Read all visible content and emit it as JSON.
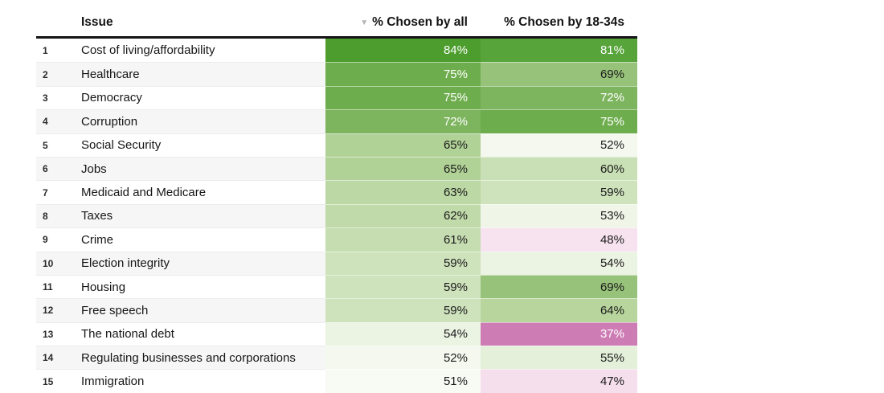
{
  "table": {
    "header": {
      "issue_label": "Issue",
      "col_all_label": "% Chosen by all",
      "col_young_label": "% Chosen by 18-34s",
      "sort_icon": "▼"
    },
    "rows": [
      {
        "rank": "1",
        "issue": "Cost of living/affordability",
        "all": {
          "text": "84%",
          "bg": "#4c9d2d",
          "fg": "#ffffff"
        },
        "young": {
          "text": "81%",
          "bg": "#57a43a",
          "fg": "#ffffff"
        }
      },
      {
        "rank": "2",
        "issue": "Healthcare",
        "all": {
          "text": "75%",
          "bg": "#6ead4d",
          "fg": "#ffffff"
        },
        "young": {
          "text": "69%",
          "bg": "#97c27a",
          "fg": "#1c1c1c"
        }
      },
      {
        "rank": "3",
        "issue": "Democracy",
        "all": {
          "text": "75%",
          "bg": "#6ead4d",
          "fg": "#ffffff"
        },
        "young": {
          "text": "72%",
          "bg": "#7db45e",
          "fg": "#ffffff"
        }
      },
      {
        "rank": "4",
        "issue": "Corruption",
        "all": {
          "text": "72%",
          "bg": "#7db45e",
          "fg": "#ffffff"
        },
        "young": {
          "text": "75%",
          "bg": "#6ead4d",
          "fg": "#ffffff"
        }
      },
      {
        "rank": "5",
        "issue": "Social Security",
        "all": {
          "text": "65%",
          "bg": "#b1d296",
          "fg": "#1c1c1c"
        },
        "young": {
          "text": "52%",
          "bg": "#f4f8ef",
          "fg": "#1c1c1c"
        }
      },
      {
        "rank": "6",
        "issue": "Jobs",
        "all": {
          "text": "65%",
          "bg": "#b1d296",
          "fg": "#1c1c1c"
        },
        "young": {
          "text": "60%",
          "bg": "#c9dfb5",
          "fg": "#1c1c1c"
        }
      },
      {
        "rank": "7",
        "issue": "Medicaid and Medicare",
        "all": {
          "text": "63%",
          "bg": "#bcd8a4",
          "fg": "#1c1c1c"
        },
        "young": {
          "text": "59%",
          "bg": "#cee2bc",
          "fg": "#1c1c1c"
        }
      },
      {
        "rank": "8",
        "issue": "Taxes",
        "all": {
          "text": "62%",
          "bg": "#c0daa9",
          "fg": "#1c1c1c"
        },
        "young": {
          "text": "53%",
          "bg": "#eff6e8",
          "fg": "#1c1c1c"
        }
      },
      {
        "rank": "9",
        "issue": "Crime",
        "all": {
          "text": "61%",
          "bg": "#c5ddb0",
          "fg": "#1c1c1c"
        },
        "young": {
          "text": "48%",
          "bg": "#f7e3f0",
          "fg": "#1c1c1c"
        }
      },
      {
        "rank": "10",
        "issue": "Election integrity",
        "all": {
          "text": "59%",
          "bg": "#cee2bc",
          "fg": "#1c1c1c"
        },
        "young": {
          "text": "54%",
          "bg": "#ebf3e2",
          "fg": "#1c1c1c"
        }
      },
      {
        "rank": "11",
        "issue": "Housing",
        "all": {
          "text": "59%",
          "bg": "#cee2bc",
          "fg": "#1c1c1c"
        },
        "young": {
          "text": "69%",
          "bg": "#97c27a",
          "fg": "#1c1c1c"
        }
      },
      {
        "rank": "12",
        "issue": "Free speech",
        "all": {
          "text": "59%",
          "bg": "#cee2bc",
          "fg": "#1c1c1c"
        },
        "young": {
          "text": "64%",
          "bg": "#b7d59d",
          "fg": "#1c1c1c"
        }
      },
      {
        "rank": "13",
        "issue": "The national debt",
        "all": {
          "text": "54%",
          "bg": "#ebf3e2",
          "fg": "#1c1c1c"
        },
        "young": {
          "text": "37%",
          "bg": "#cd7cb4",
          "fg": "#ffffff"
        }
      },
      {
        "rank": "14",
        "issue": "Regulating businesses and corporations",
        "all": {
          "text": "52%",
          "bg": "#f4f8ef",
          "fg": "#1c1c1c"
        },
        "young": {
          "text": "55%",
          "bg": "#e4f0da",
          "fg": "#1c1c1c"
        }
      },
      {
        "rank": "15",
        "issue": "Immigration",
        "all": {
          "text": "51%",
          "bg": "#f8faf4",
          "fg": "#1c1c1c"
        },
        "young": {
          "text": "47%",
          "bg": "#f5dfed",
          "fg": "#1c1c1c"
        }
      }
    ]
  },
  "chart_data": {
    "type": "heatmap",
    "title": "",
    "columns": [
      "Issue",
      "% Chosen by all",
      "% Chosen by 18-34s"
    ],
    "sorted_by": "% Chosen by all, descending",
    "categories": [
      "Cost of living/affordability",
      "Healthcare",
      "Democracy",
      "Corruption",
      "Social Security",
      "Jobs",
      "Medicaid and Medicare",
      "Taxes",
      "Crime",
      "Election integrity",
      "Housing",
      "Free speech",
      "The national debt",
      "Regulating businesses and corporations",
      "Immigration"
    ],
    "series": [
      {
        "name": "% Chosen by all",
        "values": [
          84,
          75,
          75,
          72,
          65,
          65,
          63,
          62,
          61,
          59,
          59,
          59,
          54,
          52,
          51
        ]
      },
      {
        "name": "% Chosen by 18-34s",
        "values": [
          81,
          69,
          72,
          75,
          52,
          60,
          59,
          53,
          48,
          54,
          69,
          64,
          37,
          55,
          47
        ]
      }
    ],
    "color_scale": {
      "type": "diverging",
      "low_color": "#cd7cb4",
      "mid_color": "#ffffff",
      "high_color": "#4c9d2d",
      "midpoint": 50
    }
  }
}
